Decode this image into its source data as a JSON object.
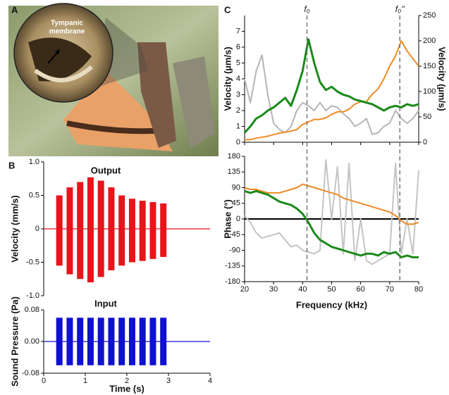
{
  "photo": {
    "panel": "A",
    "label_lines": [
      "Tympanic",
      "membrane"
    ]
  },
  "chart_data": [
    {
      "type": "burst",
      "panel": "B",
      "title": "Output",
      "ylabel": "Velocity (mm/s)",
      "color": "#e8141b",
      "x": [
        0.3,
        0.55,
        0.8,
        1.05,
        1.3,
        1.55,
        1.8,
        2.05,
        2.3,
        2.55,
        2.8
      ],
      "values": [
        0.5,
        0.62,
        0.7,
        0.77,
        0.72,
        0.62,
        0.5,
        0.45,
        0.42,
        0.4,
        0.38
      ],
      "negative_values": [
        -0.55,
        -0.68,
        -0.75,
        -0.8,
        -0.72,
        -0.62,
        -0.55,
        -0.5,
        -0.48,
        -0.45,
        -0.42
      ],
      "xlim": [
        0,
        4
      ],
      "ylim": [
        -1,
        1
      ],
      "yticks": [
        {
          "value": -1,
          "label": "-1.0"
        },
        -0.5,
        0,
        0.5,
        {
          "value": 1,
          "label": "1.0"
        }
      ]
    },
    {
      "type": "burst",
      "title": "Input",
      "ylabel": "Sound Pressure (Pa)",
      "xlabel": "Time (s)",
      "color": "#1010d0",
      "x": [
        0.3,
        0.55,
        0.8,
        1.05,
        1.3,
        1.55,
        1.8,
        2.05,
        2.3,
        2.55,
        2.8
      ],
      "values": [
        0.06,
        0.06,
        0.06,
        0.06,
        0.06,
        0.06,
        0.06,
        0.06,
        0.06,
        0.06,
        0.06
      ],
      "negative_values": [
        -0.06,
        -0.06,
        -0.06,
        -0.06,
        -0.06,
        -0.06,
        -0.06,
        -0.06,
        -0.06,
        -0.06,
        -0.06
      ],
      "xlim": [
        0,
        4
      ],
      "xticks": [
        0,
        1,
        2,
        3,
        4
      ],
      "ylim": [
        -0.08,
        0.08
      ],
      "yticks": [
        -0.08,
        {
          "value": 0,
          "label": "0.00"
        },
        0.08
      ]
    },
    {
      "type": "line",
      "panel": "C",
      "ylabel": "Velocity (µm/s)",
      "y2label": "Velocity (µm/s)",
      "annotations": [
        {
          "text": "f₀",
          "x": 41.5
        },
        {
          "text": "f₀''",
          "x": 73.5
        }
      ],
      "x": [
        20,
        22,
        24,
        26,
        28,
        30,
        32,
        34,
        36,
        38,
        40,
        42,
        44,
        46,
        48,
        50,
        52,
        54,
        56,
        58,
        60,
        62,
        64,
        66,
        68,
        70,
        72,
        74,
        76,
        78,
        80
      ],
      "series": [
        {
          "color": "#b5b5b5",
          "values": [
            4,
            2.5,
            4.5,
            5.5,
            3,
            1.2,
            0.8,
            0.6,
            1.0,
            2.0,
            2.5,
            2.3,
            2.0,
            2.5,
            2.0,
            2.3,
            2.2,
            1.8,
            1.5,
            1.0,
            1.2,
            1.5,
            0.5,
            0.6,
            1.0,
            1.2,
            2.0,
            1.5,
            1.2,
            1.5,
            2.0
          ]
        },
        {
          "color": "#f08a24",
          "axis": "y2",
          "values": [
            5,
            5,
            8,
            10,
            12,
            15,
            18,
            20,
            22,
            25,
            35,
            40,
            45,
            45,
            48,
            55,
            60,
            60,
            65,
            75,
            80,
            80,
            95,
            105,
            125,
            150,
            170,
            200,
            180,
            165,
            150
          ]
        },
        {
          "color": "#1a8a1a",
          "values": [
            0.6,
            1.0,
            1.5,
            1.7,
            2.0,
            2.2,
            2.5,
            2.8,
            2.3,
            3.3,
            4.5,
            6.5,
            5.0,
            3.8,
            3.3,
            3.5,
            3.2,
            3.0,
            2.9,
            2.7,
            2.6,
            2.5,
            2.4,
            2.2,
            2.0,
            2.2,
            2.3,
            2.2,
            2.4,
            2.3,
            2.4
          ]
        }
      ],
      "xlim": [
        20,
        80
      ],
      "xticks": [
        20,
        30,
        40,
        50,
        60,
        70,
        80
      ],
      "ylim": [
        0,
        8
      ],
      "yticks": [
        0,
        1,
        2,
        3,
        4,
        5,
        6,
        7
      ],
      "y2lim": [
        0,
        250
      ],
      "y2ticks": [
        0,
        50,
        100,
        150,
        200,
        250
      ]
    },
    {
      "type": "line",
      "ylabel": "Phase (°)",
      "xlabel": "Frequency (kHz)",
      "x": [
        20,
        22,
        24,
        26,
        28,
        30,
        32,
        34,
        36,
        38,
        40,
        42,
        44,
        46,
        48,
        50,
        52,
        54,
        56,
        58,
        60,
        62,
        64,
        66,
        68,
        70,
        72,
        74,
        76,
        78,
        80
      ],
      "series": [
        {
          "color": "#c4c4c4",
          "values": [
            10,
            -10,
            -40,
            -55,
            -50,
            -45,
            -40,
            -60,
            -80,
            -75,
            -90,
            -95,
            -100,
            -90,
            170,
            0,
            150,
            -100,
            160,
            -120,
            0,
            -120,
            -130,
            -120,
            -110,
            -100,
            160,
            -100,
            0,
            -100,
            140
          ]
        },
        {
          "color": "#f08a24",
          "values": [
            90,
            85,
            85,
            80,
            75,
            75,
            75,
            80,
            85,
            90,
            100,
            95,
            90,
            85,
            80,
            75,
            70,
            60,
            55,
            50,
            45,
            40,
            35,
            30,
            25,
            20,
            10,
            -5,
            -15,
            -15,
            -10
          ]
        },
        {
          "color": "#1a8a1a",
          "values": [
            80,
            75,
            80,
            75,
            70,
            60,
            50,
            45,
            40,
            30,
            15,
            -10,
            -40,
            -60,
            -70,
            -80,
            -85,
            -90,
            -95,
            -100,
            -105,
            -100,
            -100,
            -105,
            -95,
            -100,
            -95,
            -110,
            -105,
            -110,
            -110
          ]
        }
      ],
      "xlim": [
        20,
        80
      ],
      "xticks": [
        20,
        30,
        40,
        50,
        60,
        70,
        80
      ],
      "ylim": [
        -180,
        180
      ],
      "yticks": [
        -180,
        -135,
        -90,
        -45,
        0,
        45,
        90,
        135,
        180
      ]
    }
  ]
}
